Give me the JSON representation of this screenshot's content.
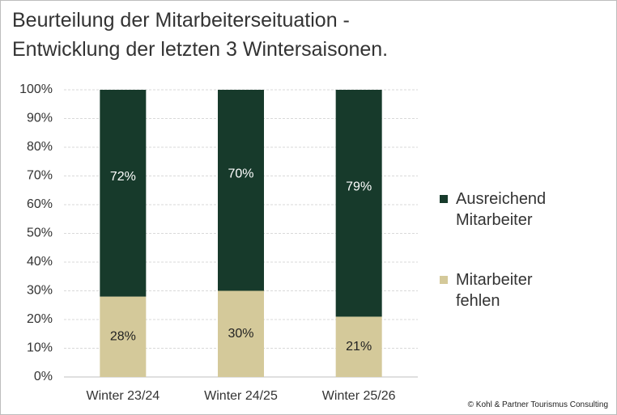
{
  "chart_data": {
    "type": "stacked_bar",
    "title": [
      "Beurteilung der Mitarbeiterseituation -",
      "Entwicklung der letzten 3 Wintersaisonen."
    ],
    "categories": [
      "Winter 23/24",
      "Winter 24/25",
      "Winter 25/26"
    ],
    "series": [
      {
        "name": "Mitarbeiter fehlen",
        "color": "#d4c99a",
        "label_color": "#222222",
        "values": [
          28,
          30,
          21
        ],
        "value_labels": [
          "28%",
          "30%",
          "21%"
        ]
      },
      {
        "name": "Ausreichend Mitarbeiter",
        "color": "#173a2b",
        "label_color": "#ffffff",
        "values": [
          72,
          70,
          79
        ],
        "value_labels": [
          "72%",
          "70%",
          "79%"
        ]
      }
    ],
    "ylim": [
      0,
      100
    ],
    "yticks": [
      {
        "value": 0,
        "label": "0%"
      },
      {
        "value": 10,
        "label": "10%"
      },
      {
        "value": 20,
        "label": "20%"
      },
      {
        "value": 30,
        "label": "30%"
      },
      {
        "value": 40,
        "label": "40%"
      },
      {
        "value": 50,
        "label": "50%"
      },
      {
        "value": 60,
        "label": "60%"
      },
      {
        "value": 70,
        "label": "70%"
      },
      {
        "value": 80,
        "label": "80%"
      },
      {
        "value": 90,
        "label": "90%"
      },
      {
        "value": 100,
        "label": "100%"
      }
    ],
    "grid": true,
    "legend": "right",
    "source": "© Kohl & Partner Tourismus Consulting"
  }
}
